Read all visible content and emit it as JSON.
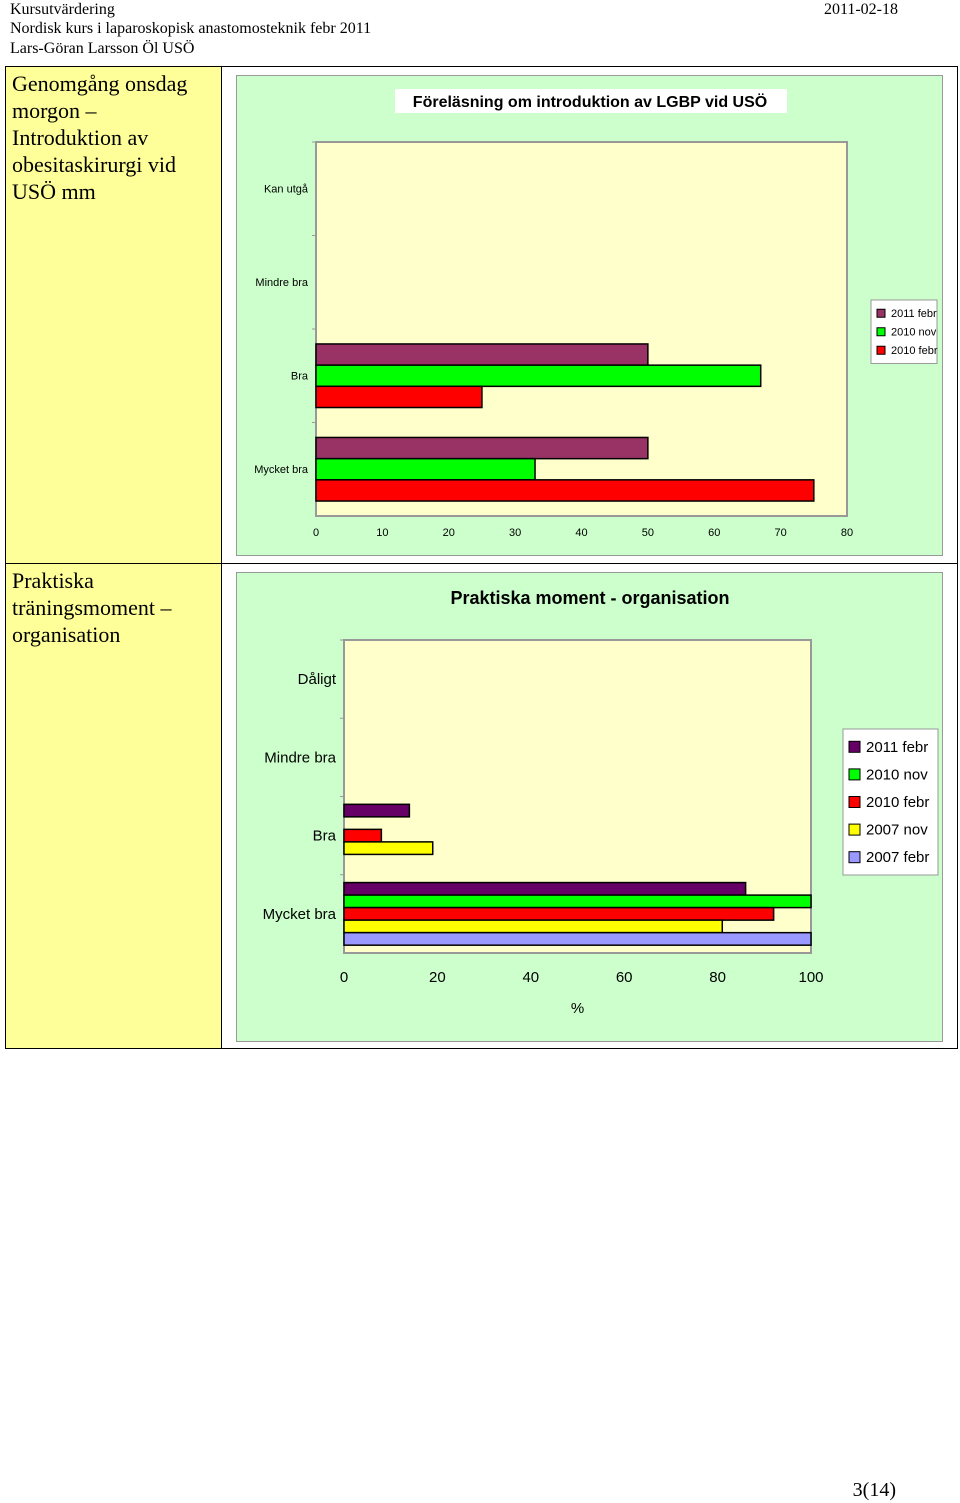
{
  "header": {
    "line1": "Kursutvärdering",
    "line2": "Nordisk kurs i laparoskopisk anastomosteknik febr 2011",
    "line3": "Lars-Göran Larsson Öl USÖ",
    "date": "2011-02-18"
  },
  "rows": [
    {
      "label": "Genomgång onsdag morgon – Introduktion av obesitaskirurgi vid USÖ mm"
    },
    {
      "label": "Praktiska träningsmoment – organisation"
    }
  ],
  "footer": {
    "page": "3(14)"
  },
  "chart_data": [
    {
      "type": "bar",
      "orientation": "horizontal",
      "title": "Föreläsning om introduktion av LGBP vid USÖ",
      "categories": [
        "Kan utgå",
        "Mindre bra",
        "Bra",
        "Mycket bra"
      ],
      "series": [
        {
          "name": "2011 febr",
          "color": "#993366",
          "values": [
            0,
            0,
            50,
            50
          ]
        },
        {
          "name": "2010 nov",
          "color": "#00ff00",
          "values": [
            0,
            0,
            67,
            33
          ]
        },
        {
          "name": "2010 febr",
          "color": "#ff0000",
          "values": [
            0,
            0,
            25,
            75
          ]
        }
      ],
      "xlim": [
        0,
        80
      ],
      "xticks": [
        "0",
        "10",
        "20",
        "30",
        "40",
        "50",
        "60",
        "70",
        "80"
      ],
      "xlabel": "",
      "ylabel": "",
      "legend": "right"
    },
    {
      "type": "bar",
      "orientation": "horizontal",
      "title": "Praktiska moment - organisation",
      "categories": [
        "Dåligt",
        "Mindre bra",
        "Bra",
        "Mycket bra"
      ],
      "series": [
        {
          "name": "2011 febr",
          "color": "#660066",
          "values": [
            0,
            0,
            14,
            86
          ]
        },
        {
          "name": "2010 nov",
          "color": "#00ff00",
          "values": [
            0,
            0,
            0,
            100
          ]
        },
        {
          "name": "2010 febr",
          "color": "#ff0000",
          "values": [
            0,
            0,
            8,
            92
          ]
        },
        {
          "name": "2007 nov",
          "color": "#ffff00",
          "values": [
            0,
            0,
            19,
            81
          ]
        },
        {
          "name": "2007 febr",
          "color": "#9999ff",
          "values": [
            0,
            0,
            0,
            100
          ]
        }
      ],
      "xlim": [
        0,
        100
      ],
      "xticks": [
        "0",
        "20",
        "40",
        "60",
        "80",
        "100"
      ],
      "xlabel": "%",
      "ylabel": "",
      "legend": "right"
    }
  ]
}
